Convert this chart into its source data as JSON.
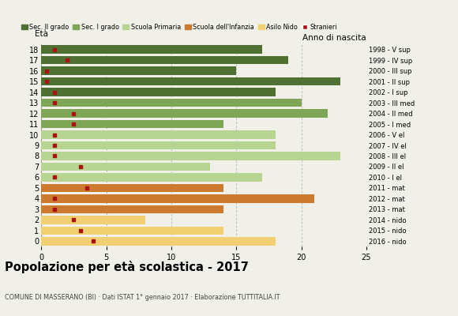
{
  "ages": [
    18,
    17,
    16,
    15,
    14,
    13,
    12,
    11,
    10,
    9,
    8,
    7,
    6,
    5,
    4,
    3,
    2,
    1,
    0
  ],
  "years": [
    "1998 - V sup",
    "1999 - IV sup",
    "2000 - III sup",
    "2001 - II sup",
    "2002 - I sup",
    "2003 - III med",
    "2004 - II med",
    "2005 - I med",
    "2006 - V el",
    "2007 - IV el",
    "2008 - III el",
    "2009 - II el",
    "2010 - I el",
    "2011 - mat",
    "2012 - mat",
    "2013 - mat",
    "2014 - nido",
    "2015 - nido",
    "2016 - nido"
  ],
  "bar_values": [
    17,
    19,
    15,
    23,
    18,
    20,
    22,
    14,
    18,
    18,
    23,
    13,
    17,
    14,
    21,
    14,
    8,
    14,
    18
  ],
  "bar_colors": [
    "#4e7033",
    "#4e7033",
    "#4e7033",
    "#4e7033",
    "#4e7033",
    "#7da657",
    "#7da657",
    "#7da657",
    "#b8d492",
    "#b8d492",
    "#b8d492",
    "#b8d492",
    "#b8d492",
    "#cc7a30",
    "#cc7a30",
    "#cc7a30",
    "#f0d070",
    "#f0d070",
    "#f0d070"
  ],
  "stranger_values": [
    1.0,
    2.0,
    0.4,
    0.4,
    1.0,
    1.0,
    2.5,
    2.5,
    1.0,
    1.0,
    1.0,
    3.0,
    1.0,
    3.5,
    1.0,
    1.0,
    2.5,
    3.0,
    4.0
  ],
  "legend_labels": [
    "Sec. II grado",
    "Sec. I grado",
    "Scuola Primaria",
    "Scuola dell'Infanzia",
    "Asilo Nido",
    "Stranieri"
  ],
  "legend_colors": [
    "#4e7033",
    "#7da657",
    "#b8d492",
    "#cc7a30",
    "#f0d070",
    "#aa1111"
  ],
  "title": "Popolazione per età scolastica - 2017",
  "subtitle": "COMUNE DI MASSERANO (BI) · Dati ISTAT 1° gennaio 2017 · Elaborazione TUTTITALIA.IT",
  "xlabel_left": "Età",
  "xlabel_right": "Anno di nascita",
  "xlim": [
    0,
    25
  ],
  "grid_ticks": [
    0,
    5,
    10,
    15,
    20,
    25
  ],
  "background_color": "#f0f0e8"
}
